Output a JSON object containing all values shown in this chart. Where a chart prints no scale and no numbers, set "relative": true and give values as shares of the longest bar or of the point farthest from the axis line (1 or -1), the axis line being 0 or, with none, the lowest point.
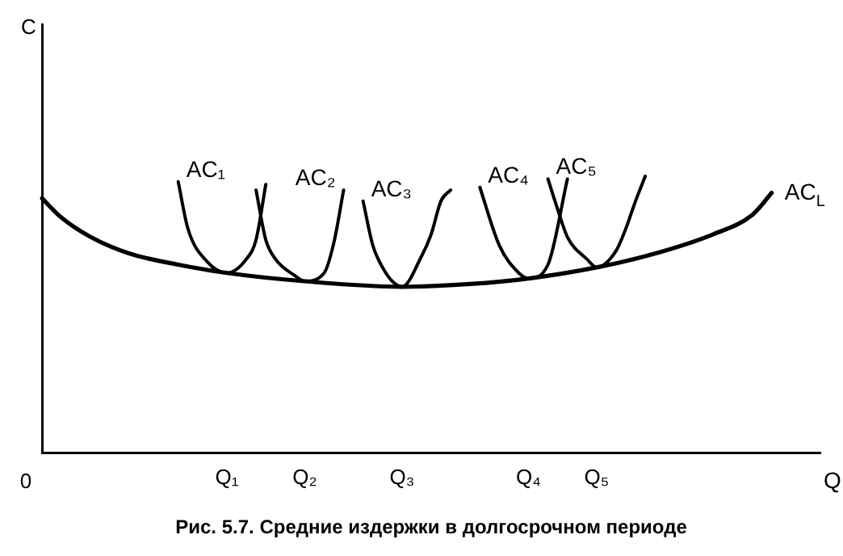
{
  "chart_data": {
    "type": "line",
    "title": "Рис. 5.7. Средние издержки в долгосрочном периоде",
    "xlabel": "Q",
    "annotations": [
      "0",
      "C"
    ],
    "relative": true,
    "legend": false,
    "grid": false,
    "marker": "none",
    "line_style": "solid",
    "categories": [
      null,
      null,
      null,
      null,
      null,
      null,
      null,
      null,
      null,
      null,
      null,
      null,
      null,
      null,
      null,
      null,
      null,
      null,
      null,
      "Q₁",
      null,
      null,
      null,
      null,
      null,
      null,
      null,
      "Q₂",
      null,
      null,
      null,
      null,
      null,
      null,
      null,
      null,
      null,
      "Q₃",
      null,
      null,
      null,
      null,
      null,
      null,
      null,
      null,
      null,
      null,
      null,
      null,
      "Q₄",
      null,
      null,
      null,
      null,
      null,
      null,
      "Q₅",
      null,
      null,
      null,
      null,
      null,
      null,
      null,
      null,
      null,
      null,
      null,
      null,
      null,
      null,
      null,
      null,
      null,
      null,
      null,
      null,
      null,
      null,
      null
    ],
    "series": [
      {
        "name": "AC$_{L}$",
        "color": "#000000",
        "values": [
          0.92,
          null,
          0.85,
          null,
          null,
          0.78,
          null,
          null,
          null,
          0.72,
          null,
          null,
          null,
          null,
          0.68,
          null,
          null,
          null,
          null,
          0.65,
          null,
          null,
          null,
          null,
          null,
          null,
          null,
          0.62,
          null,
          null,
          null,
          null,
          null,
          null,
          null,
          null,
          null,
          0.6,
          null,
          null,
          null,
          null,
          null,
          null,
          0.61,
          null,
          null,
          null,
          null,
          null,
          0.63,
          null,
          null,
          null,
          null,
          null,
          null,
          0.67,
          null,
          null,
          null,
          null,
          null,
          0.72,
          null,
          null,
          null,
          null,
          null,
          0.79,
          null,
          null,
          null,
          0.86,
          null,
          0.94,
          null,
          null,
          null,
          null,
          null
        ]
      },
      {
        "name": "AC₁",
        "color": "#000000",
        "values": [
          null,
          null,
          null,
          null,
          null,
          null,
          null,
          null,
          null,
          null,
          null,
          null,
          null,
          null,
          0.98,
          0.81,
          null,
          0.69,
          null,
          0.65,
          null,
          0.7,
          0.77,
          0.97,
          null,
          null,
          null,
          null,
          null,
          null,
          null,
          null,
          null,
          null,
          null,
          null,
          null,
          null,
          null,
          null,
          null,
          null,
          null,
          null,
          null,
          null,
          null,
          null,
          null,
          null,
          null,
          null,
          null,
          null,
          null,
          null,
          null,
          null,
          null,
          null,
          null,
          null,
          null,
          null,
          null,
          null,
          null,
          null,
          null,
          null,
          null,
          null,
          null,
          null,
          null,
          null,
          null,
          null,
          null,
          null,
          null
        ]
      },
      {
        "name": "AC₂",
        "color": "#000000",
        "values": [
          null,
          null,
          null,
          null,
          null,
          null,
          null,
          null,
          null,
          null,
          null,
          null,
          null,
          null,
          null,
          null,
          null,
          null,
          null,
          null,
          null,
          null,
          0.95,
          0.77,
          0.7,
          null,
          0.64,
          0.62,
          null,
          0.65,
          0.76,
          0.95,
          null,
          null,
          null,
          null,
          null,
          null,
          null,
          null,
          null,
          null,
          null,
          null,
          null,
          null,
          null,
          null,
          null,
          null,
          null,
          null,
          null,
          null,
          null,
          null,
          null,
          null,
          null,
          null,
          null,
          null,
          null,
          null,
          null,
          null,
          null,
          null,
          null,
          null,
          null,
          null,
          null,
          null,
          null,
          null,
          null,
          null,
          null,
          null,
          null
        ]
      },
      {
        "name": "AC₃",
        "color": "#000000",
        "values": [
          null,
          null,
          null,
          null,
          null,
          null,
          null,
          null,
          null,
          null,
          null,
          null,
          null,
          null,
          null,
          null,
          null,
          null,
          null,
          null,
          null,
          null,
          null,
          null,
          null,
          null,
          null,
          null,
          null,
          null,
          null,
          null,
          null,
          0.91,
          0.75,
          0.67,
          0.62,
          0.6,
          null,
          0.71,
          0.79,
          0.91,
          0.95,
          null,
          null,
          null,
          null,
          null,
          null,
          null,
          null,
          null,
          null,
          null,
          null,
          null,
          null,
          null,
          null,
          null,
          null,
          null,
          null,
          null,
          null,
          null,
          null,
          null,
          null,
          null,
          null,
          null,
          null,
          null,
          null,
          null,
          null,
          null,
          null,
          null,
          null
        ]
      },
      {
        "name": "AC₄",
        "color": "#000000",
        "values": [
          null,
          null,
          null,
          null,
          null,
          null,
          null,
          null,
          null,
          null,
          null,
          null,
          null,
          null,
          null,
          null,
          null,
          null,
          null,
          null,
          null,
          null,
          null,
          null,
          null,
          null,
          null,
          null,
          null,
          null,
          null,
          null,
          null,
          null,
          null,
          null,
          null,
          null,
          null,
          null,
          null,
          null,
          null,
          null,
          null,
          0.96,
          null,
          0.75,
          null,
          0.65,
          0.63,
          null,
          0.68,
          null,
          0.99,
          null,
          null,
          null,
          null,
          null,
          null,
          null,
          null,
          null,
          null,
          null,
          null,
          null,
          null,
          null,
          null,
          null,
          null,
          null,
          null,
          null,
          null,
          null,
          null,
          null,
          null
        ]
      },
      {
        "name": "AC₅",
        "color": "#000000",
        "values": [
          null,
          null,
          null,
          null,
          null,
          null,
          null,
          null,
          null,
          null,
          null,
          null,
          null,
          null,
          null,
          null,
          null,
          null,
          null,
          null,
          null,
          null,
          null,
          null,
          null,
          null,
          null,
          null,
          null,
          null,
          null,
          null,
          null,
          null,
          null,
          null,
          null,
          null,
          null,
          null,
          null,
          null,
          null,
          null,
          null,
          null,
          null,
          null,
          null,
          null,
          null,
          null,
          0.99,
          0.88,
          0.78,
          null,
          0.7,
          0.67,
          null,
          0.73,
          0.81,
          0.91,
          1,
          null,
          null,
          null,
          null,
          null,
          null,
          null,
          null,
          null,
          null,
          null,
          null,
          null,
          null,
          null,
          null,
          null,
          null
        ]
      }
    ]
  }
}
